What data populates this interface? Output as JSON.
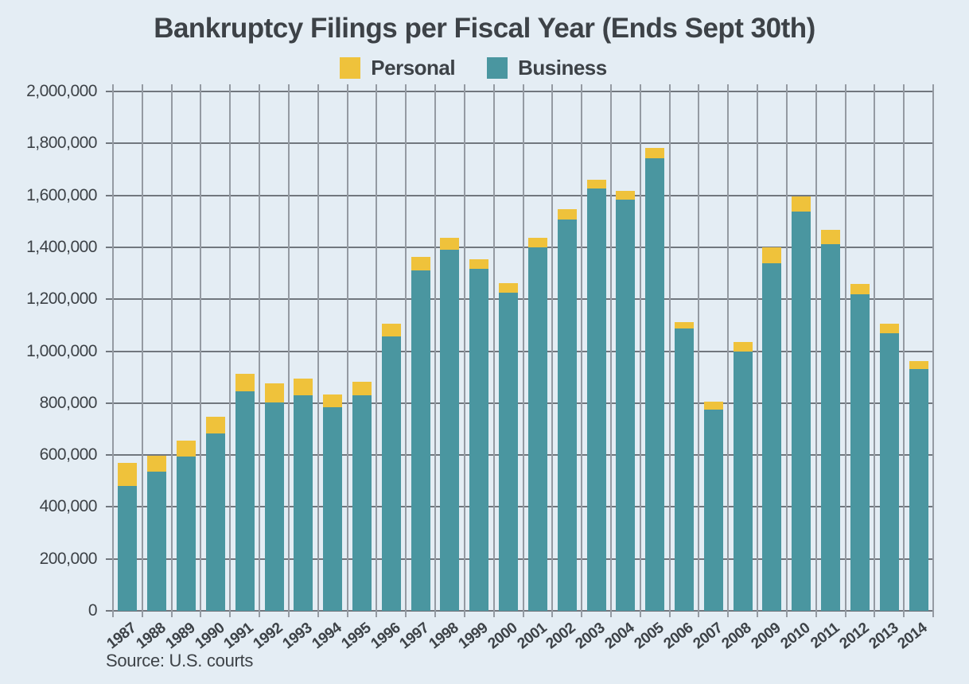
{
  "title": "Bankruptcy Filings per Fiscal Year (Ends Sept 30th)",
  "source_note": "Source: U.S. courts",
  "legend": [
    {
      "label": "Personal",
      "color": "#EFC23B"
    },
    {
      "label": "Business",
      "color": "#4A96A0"
    }
  ],
  "colors": {
    "background": "#E4EDF4",
    "personal": "#EFC23B",
    "business": "#4A96A0",
    "grid_horizontal": "#71777E",
    "grid_vertical": "#949AA2",
    "text": "#3D4247"
  },
  "chart_data": {
    "type": "bar",
    "stacked": true,
    "title": "Bankruptcy Filings per Fiscal Year (Ends Sept 30th)",
    "xlabel": "",
    "ylabel": "",
    "ylim": [
      0,
      2000000
    ],
    "ytick_interval": 200000,
    "ytick_labels": [
      "0",
      "200,000",
      "400,000",
      "600,000",
      "800,000",
      "1,000,000",
      "1,200,000",
      "1,400,000",
      "1,600,000",
      "1,800,000",
      "2,000,000"
    ],
    "grid": "both",
    "legend_position": "top",
    "categories": [
      "1987",
      "1988",
      "1989",
      "1990",
      "1991",
      "1992",
      "1993",
      "1994",
      "1995",
      "1996",
      "1997",
      "1998",
      "1999",
      "2000",
      "2001",
      "2002",
      "2003",
      "2004",
      "2005",
      "2006",
      "2007",
      "2008",
      "2009",
      "2010",
      "2011",
      "2012",
      "2013",
      "2014"
    ],
    "series": [
      {
        "name": "Business",
        "color": "#4A96A0",
        "stack_position": "bottom",
        "values": [
          482000,
          535000,
          594000,
          683000,
          846000,
          803000,
          829000,
          783000,
          829000,
          1058000,
          1310000,
          1391000,
          1317000,
          1224000,
          1400000,
          1508000,
          1625000,
          1582000,
          1743000,
          1086000,
          776000,
          1000000,
          1340000,
          1537000,
          1412000,
          1218000,
          1069000,
          932000
        ]
      },
      {
        "name": "Personal",
        "color": "#EFC23B",
        "stack_position": "top",
        "values": [
          88000,
          63000,
          63000,
          64000,
          67000,
          74000,
          65000,
          51000,
          53000,
          49000,
          54000,
          44000,
          38000,
          38000,
          37000,
          39000,
          36000,
          36000,
          39000,
          25000,
          30000,
          36000,
          60000,
          60000,
          55000,
          40000,
          38000,
          31000
        ]
      }
    ],
    "totals": [
      570000,
      598000,
      657000,
      747000,
      913000,
      877000,
      894000,
      834000,
      882000,
      1107000,
      1364000,
      1435000,
      1355000,
      1262000,
      1437000,
      1547000,
      1661000,
      1618000,
      1782000,
      1111000,
      806000,
      1036000,
      1400000,
      1597000,
      1467000,
      1258000,
      1107000,
      963000
    ]
  }
}
